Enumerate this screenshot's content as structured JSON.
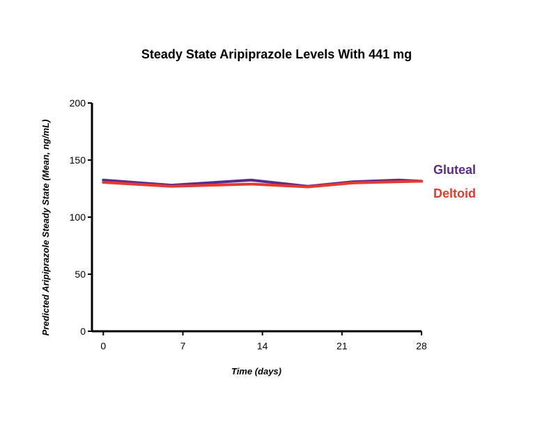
{
  "chart_data": {
    "type": "line",
    "title": "Steady State Aripiprazole Levels With 441 mg",
    "xlabel": "Time (days)",
    "ylabel": "Predicted Aripiprazole Steady State (Mean, ng/mL)",
    "xlim": [
      -1,
      28
    ],
    "ylim": [
      0,
      200
    ],
    "x_ticks": [
      0,
      7,
      14,
      21,
      28
    ],
    "y_ticks": [
      0,
      50,
      100,
      150,
      200
    ],
    "grid": false,
    "legend": "right, labels at line ends",
    "series": [
      {
        "name": "Gluteal",
        "color": "#5B2C8E",
        "x": [
          0,
          6,
          13,
          18,
          22,
          26,
          28
        ],
        "y": [
          132.5,
          128,
          132.5,
          127,
          131,
          132.5,
          131.5
        ]
      },
      {
        "name": "Deltoid",
        "color": "#E8392E",
        "x": [
          0,
          6,
          13,
          18,
          22,
          26,
          28
        ],
        "y": [
          130.5,
          127,
          129,
          126.5,
          130,
          131,
          131.5
        ]
      }
    ]
  }
}
